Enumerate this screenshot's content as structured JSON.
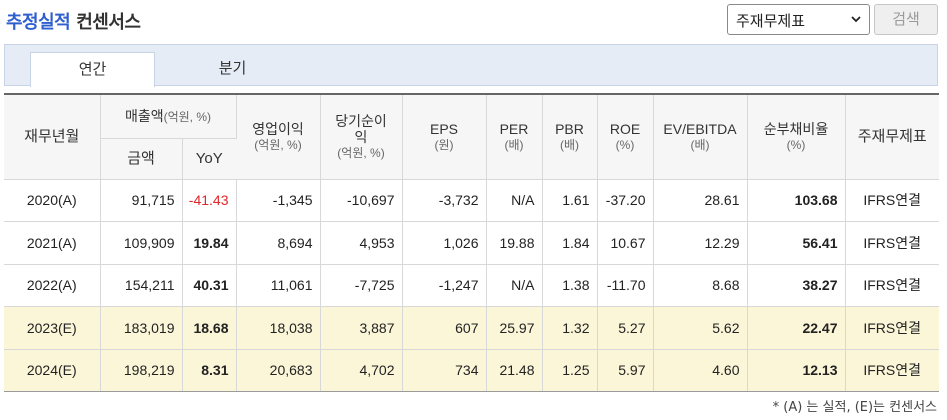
{
  "header": {
    "title_accent": "추정실적",
    "title_rest": "컨센서스",
    "select_value": "주재무제표",
    "search_label": "검색"
  },
  "tabs": [
    {
      "label": "연간",
      "active": true
    },
    {
      "label": "분기",
      "active": false
    }
  ],
  "table": {
    "headers": {
      "period": "재무년월",
      "revenue": "매출액",
      "revenue_unit": "(억원, %)",
      "revenue_amount": "금액",
      "revenue_yoy": "YoY",
      "op_income": "영업이익",
      "op_income_unit": "(억원, %)",
      "net_income": "당기순이익",
      "net_income_unit": "(억원, %)",
      "eps": "EPS",
      "eps_unit": "(원)",
      "per": "PER",
      "per_unit": "(배)",
      "pbr": "PBR",
      "pbr_unit": "(배)",
      "roe": "ROE",
      "roe_unit": "(%)",
      "ev_ebitda": "EV/EBITDA",
      "ev_ebitda_unit": "(배)",
      "net_debt": "순부채비율",
      "net_debt_unit": "(%)",
      "standard": "주재무제표"
    },
    "rows": [
      {
        "period": "2020(A)",
        "amount": "91,715",
        "yoy": "-41.43",
        "op": "-1,345",
        "net": "-10,697",
        "eps": "-3,732",
        "per": "N/A",
        "pbr": "1.61",
        "roe": "-37.20",
        "ev": "28.61",
        "debt": "103.68",
        "std": "IFRS연결",
        "estimate": false,
        "yoy_negative": true
      },
      {
        "period": "2021(A)",
        "amount": "109,909",
        "yoy": "19.84",
        "op": "8,694",
        "net": "4,953",
        "eps": "1,026",
        "per": "19.88",
        "pbr": "1.84",
        "roe": "10.67",
        "ev": "12.29",
        "debt": "56.41",
        "std": "IFRS연결",
        "estimate": false,
        "yoy_negative": false
      },
      {
        "period": "2022(A)",
        "amount": "154,211",
        "yoy": "40.31",
        "op": "11,061",
        "net": "-7,725",
        "eps": "-1,247",
        "per": "N/A",
        "pbr": "1.38",
        "roe": "-11.70",
        "ev": "8.68",
        "debt": "38.27",
        "std": "IFRS연결",
        "estimate": false,
        "yoy_negative": false
      },
      {
        "period": "2023(E)",
        "amount": "183,019",
        "yoy": "18.68",
        "op": "18,038",
        "net": "3,887",
        "eps": "607",
        "per": "25.97",
        "pbr": "1.32",
        "roe": "5.27",
        "ev": "5.62",
        "debt": "22.47",
        "std": "IFRS연결",
        "estimate": true,
        "yoy_negative": false
      },
      {
        "period": "2024(E)",
        "amount": "198,219",
        "yoy": "8.31",
        "op": "20,683",
        "net": "4,702",
        "eps": "734",
        "per": "21.48",
        "pbr": "1.25",
        "roe": "5.97",
        "ev": "4.60",
        "debt": "12.13",
        "std": "IFRS연결",
        "estimate": true,
        "yoy_negative": false
      }
    ]
  },
  "footnote": "* (A) 는 실적, (E)는 컨센서스",
  "colors": {
    "accent": "#2f5fcf",
    "negative": "#e0262b",
    "estimate_row_bg": "#fbf6d8"
  }
}
